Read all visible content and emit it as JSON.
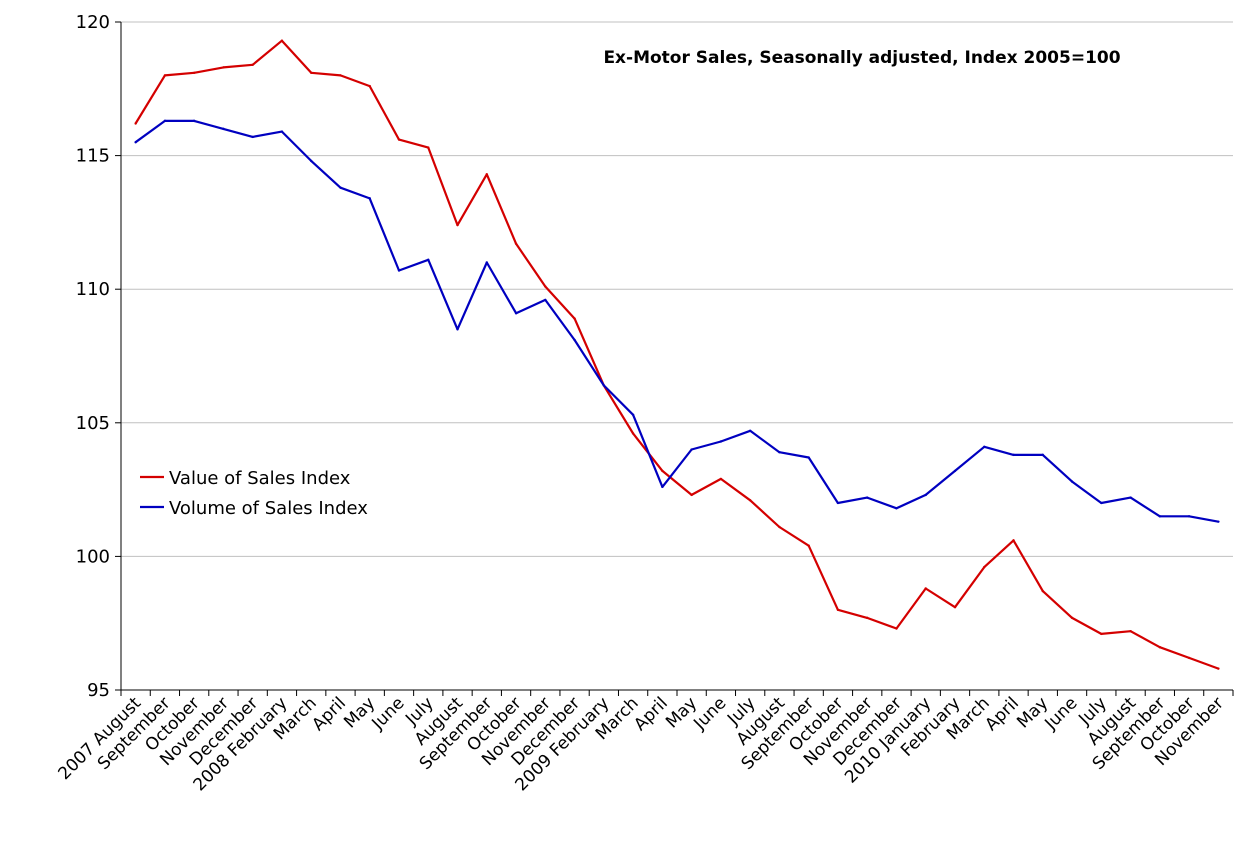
{
  "chart_data": {
    "type": "line",
    "title": "Ex-Motor Sales, Seasonally adjusted, Index 2005=100",
    "xlabel": "",
    "ylabel": "",
    "ylim": [
      95,
      120
    ],
    "yticks": [
      95,
      100,
      105,
      110,
      115,
      120
    ],
    "grid": "horizontal",
    "legend_position": "left-middle",
    "categories": [
      "2007 August",
      "September",
      "October",
      "November",
      "December",
      "2008 February",
      "March",
      "April",
      "May",
      "June",
      "July",
      "August",
      "September",
      "October",
      "November",
      "December",
      "2009 February",
      "March",
      "April",
      "May",
      "June",
      "July",
      "August",
      "September",
      "October",
      "November",
      "December",
      "2010 January",
      "February",
      "March",
      "April",
      "May",
      "June",
      "July",
      "August",
      "September",
      "October",
      "November"
    ],
    "series": [
      {
        "name": "Value of Sales  Index",
        "color": "#d40000",
        "values": [
          116.2,
          118.0,
          118.1,
          118.3,
          118.4,
          119.3,
          118.1,
          118.0,
          117.6,
          115.6,
          115.3,
          112.4,
          114.3,
          111.7,
          110.1,
          108.9,
          106.4,
          104.6,
          103.2,
          102.3,
          102.9,
          102.1,
          101.1,
          100.4,
          98.0,
          97.7,
          97.3,
          98.8,
          98.1,
          99.6,
          100.6,
          98.7,
          97.7,
          97.1,
          97.2,
          96.6,
          96.2,
          95.8
        ]
      },
      {
        "name": "Volume of Sales  Index",
        "color": "#0000c0",
        "values": [
          115.5,
          116.3,
          116.3,
          116.0,
          115.7,
          115.9,
          114.8,
          113.8,
          113.4,
          110.7,
          111.1,
          108.5,
          111.0,
          109.1,
          109.6,
          108.1,
          106.4,
          105.3,
          102.6,
          104.0,
          104.3,
          104.7,
          103.9,
          103.7,
          102.0,
          102.2,
          101.8,
          102.3,
          103.2,
          104.1,
          103.8,
          103.8,
          102.8,
          102.0,
          102.2,
          101.5,
          101.5,
          101.3
        ]
      }
    ]
  }
}
